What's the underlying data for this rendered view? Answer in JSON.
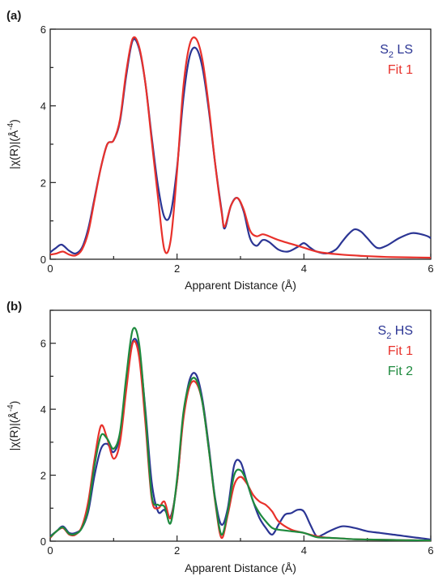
{
  "chart_data": [
    {
      "type": "line",
      "panel_label": "(a)",
      "xlabel": "Apparent Distance (Å)",
      "ylabel": "|χ(R)|(Å",
      "ylabel_sup": "-4",
      "ylabel_end": ")",
      "xlim": [
        0,
        6
      ],
      "ylim": [
        0,
        6
      ],
      "xticks": [
        "0",
        "2",
        "4",
        "6"
      ],
      "yticks": [
        "0",
        "2",
        "4",
        "6"
      ],
      "legend_position": "top-right",
      "series": [
        {
          "name": "S2 LS",
          "label_base": "S",
          "label_sub": "2",
          "label_rest": " LS",
          "color": "#2b3594",
          "x": [
            0,
            0.08,
            0.18,
            0.3,
            0.4,
            0.5,
            0.6,
            0.7,
            0.8,
            0.9,
            1.0,
            1.1,
            1.2,
            1.3,
            1.4,
            1.5,
            1.6,
            1.7,
            1.8,
            1.9,
            2.0,
            2.1,
            2.2,
            2.3,
            2.4,
            2.5,
            2.6,
            2.7,
            2.75,
            2.85,
            2.95,
            3.05,
            3.15,
            3.25,
            3.35,
            3.45,
            3.6,
            3.75,
            3.9,
            4.0,
            4.1,
            4.2,
            4.35,
            4.5,
            4.6,
            4.7,
            4.8,
            4.9,
            5.0,
            5.15,
            5.3,
            5.5,
            5.7,
            5.85,
            5.95,
            6.0
          ],
          "values": [
            0.18,
            0.28,
            0.38,
            0.22,
            0.15,
            0.3,
            0.8,
            1.6,
            2.4,
            3.0,
            3.1,
            3.6,
            4.8,
            5.7,
            5.5,
            4.6,
            3.2,
            1.9,
            1.1,
            1.2,
            2.4,
            4.2,
            5.3,
            5.5,
            5.0,
            3.9,
            2.5,
            1.3,
            0.8,
            1.4,
            1.6,
            1.25,
            0.55,
            0.35,
            0.5,
            0.45,
            0.25,
            0.2,
            0.32,
            0.42,
            0.3,
            0.2,
            0.15,
            0.25,
            0.45,
            0.65,
            0.78,
            0.72,
            0.55,
            0.3,
            0.35,
            0.55,
            0.68,
            0.65,
            0.6,
            0.55
          ]
        },
        {
          "name": "Fit 1",
          "label_base": "Fit 1",
          "label_sub": "",
          "label_rest": "",
          "color": "#e8312b",
          "x": [
            0,
            0.1,
            0.2,
            0.3,
            0.4,
            0.5,
            0.6,
            0.7,
            0.8,
            0.9,
            1.0,
            1.1,
            1.2,
            1.3,
            1.4,
            1.5,
            1.6,
            1.7,
            1.8,
            1.9,
            2.0,
            2.1,
            2.2,
            2.3,
            2.4,
            2.5,
            2.6,
            2.7,
            2.75,
            2.85,
            2.95,
            3.05,
            3.15,
            3.25,
            3.35,
            3.45,
            3.6,
            3.8,
            4.0,
            4.2,
            4.4,
            4.6,
            4.8,
            5.0,
            5.3,
            5.6,
            6.0
          ],
          "values": [
            0.12,
            0.15,
            0.2,
            0.12,
            0.1,
            0.25,
            0.7,
            1.55,
            2.4,
            3.0,
            3.1,
            3.65,
            4.9,
            5.75,
            5.55,
            4.6,
            3.1,
            1.6,
            0.25,
            0.5,
            2.3,
            4.5,
            5.6,
            5.75,
            5.2,
            4.0,
            2.5,
            1.25,
            0.85,
            1.4,
            1.6,
            1.3,
            0.75,
            0.6,
            0.65,
            0.6,
            0.5,
            0.4,
            0.3,
            0.2,
            0.15,
            0.12,
            0.1,
            0.08,
            0.06,
            0.05,
            0.04
          ]
        }
      ]
    },
    {
      "type": "line",
      "panel_label": "(b)",
      "xlabel": "Apparent Distance (Å)",
      "ylabel": "|χ(R)|(Å",
      "ylabel_sup": "-4",
      "ylabel_end": ")",
      "xlim": [
        0,
        6
      ],
      "ylim": [
        0,
        7
      ],
      "xticks": [
        "0",
        "2",
        "4",
        "6"
      ],
      "yticks": [
        "0",
        "2",
        "4",
        "6"
      ],
      "legend_position": "top-right",
      "series": [
        {
          "name": "S2 HS",
          "label_base": "S",
          "label_sub": "2",
          "label_rest": " HS",
          "color": "#2b3594",
          "x": [
            0,
            0.1,
            0.2,
            0.3,
            0.4,
            0.5,
            0.6,
            0.7,
            0.8,
            0.9,
            1.0,
            1.1,
            1.2,
            1.3,
            1.4,
            1.5,
            1.6,
            1.7,
            1.8,
            1.9,
            2.0,
            2.1,
            2.2,
            2.3,
            2.4,
            2.5,
            2.6,
            2.7,
            2.8,
            2.9,
            3.0,
            3.1,
            3.2,
            3.3,
            3.4,
            3.5,
            3.6,
            3.7,
            3.8,
            3.9,
            4.0,
            4.1,
            4.2,
            4.3,
            4.4,
            4.6,
            4.8,
            5.0,
            5.2,
            5.4,
            5.6,
            5.8,
            6.0
          ],
          "values": [
            0.15,
            0.3,
            0.45,
            0.25,
            0.25,
            0.4,
            0.9,
            2.0,
            2.8,
            2.95,
            2.7,
            3.2,
            4.8,
            6.05,
            5.8,
            4.0,
            1.8,
            0.9,
            0.95,
            0.75,
            1.8,
            3.8,
            4.9,
            5.05,
            4.3,
            2.9,
            1.3,
            0.5,
            1.0,
            2.3,
            2.4,
            1.8,
            1.2,
            0.7,
            0.4,
            0.2,
            0.5,
            0.8,
            0.85,
            0.95,
            0.9,
            0.5,
            0.15,
            0.2,
            0.3,
            0.45,
            0.4,
            0.3,
            0.25,
            0.2,
            0.15,
            0.1,
            0.05
          ]
        },
        {
          "name": "Fit 1",
          "label_base": "Fit 1",
          "label_sub": "",
          "label_rest": "",
          "color": "#e8312b",
          "x": [
            0,
            0.1,
            0.2,
            0.3,
            0.4,
            0.5,
            0.6,
            0.7,
            0.8,
            0.9,
            1.0,
            1.1,
            1.2,
            1.3,
            1.4,
            1.5,
            1.6,
            1.7,
            1.8,
            1.9,
            2.0,
            2.1,
            2.2,
            2.3,
            2.4,
            2.5,
            2.6,
            2.7,
            2.8,
            2.9,
            3.0,
            3.1,
            3.2,
            3.3,
            3.4,
            3.5,
            3.6,
            3.8,
            4.0,
            4.2,
            4.4,
            4.6,
            4.8,
            5.0,
            5.3,
            5.6,
            6.0
          ],
          "values": [
            0.1,
            0.3,
            0.4,
            0.2,
            0.2,
            0.45,
            1.2,
            2.5,
            3.5,
            3.1,
            2.5,
            3.0,
            4.6,
            6.0,
            5.6,
            3.6,
            1.3,
            1.0,
            1.2,
            0.7,
            1.8,
            3.7,
            4.7,
            4.8,
            4.2,
            2.8,
            1.2,
            0.1,
            0.8,
            1.7,
            1.95,
            1.75,
            1.4,
            1.2,
            1.1,
            0.9,
            0.6,
            0.35,
            0.25,
            0.15,
            0.1,
            0.08,
            0.06,
            0.05,
            0.04,
            0.03,
            0.02
          ]
        },
        {
          "name": "Fit 2",
          "label_base": "Fit 2",
          "label_sub": "",
          "label_rest": "",
          "color": "#1e8a3e",
          "x": [
            0,
            0.1,
            0.2,
            0.3,
            0.4,
            0.5,
            0.6,
            0.7,
            0.8,
            0.9,
            1.0,
            1.1,
            1.2,
            1.3,
            1.4,
            1.5,
            1.6,
            1.7,
            1.8,
            1.9,
            2.0,
            2.1,
            2.2,
            2.3,
            2.4,
            2.5,
            2.6,
            2.7,
            2.8,
            2.9,
            3.0,
            3.1,
            3.2,
            3.3,
            3.4,
            3.5,
            3.6,
            3.8,
            4.0,
            4.2,
            4.4,
            4.6,
            4.8,
            5.0,
            5.3,
            5.6,
            6.0
          ],
          "values": [
            0.12,
            0.3,
            0.42,
            0.22,
            0.22,
            0.4,
            1.0,
            2.3,
            3.2,
            3.1,
            2.8,
            3.3,
            5.0,
            6.4,
            6.0,
            3.9,
            1.4,
            1.1,
            1.05,
            0.55,
            1.9,
            3.9,
            4.8,
            4.9,
            4.2,
            2.8,
            1.25,
            0.2,
            0.9,
            2.0,
            2.15,
            1.8,
            1.2,
            0.85,
            0.6,
            0.4,
            0.35,
            0.3,
            0.25,
            0.12,
            0.1,
            0.08,
            0.06,
            0.05,
            0.04,
            0.03,
            0.02
          ]
        }
      ]
    }
  ]
}
